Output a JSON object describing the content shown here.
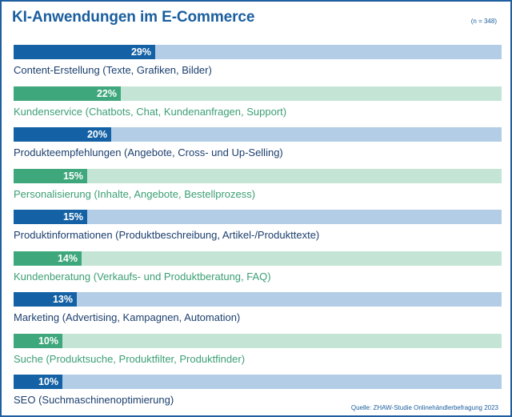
{
  "chart_data": {
    "type": "bar",
    "orientation": "horizontal",
    "title": "KI-Anwendungen im E-Commerce",
    "sample_size": "(n = 348)",
    "source": "Quelle: ZHAW-Studie Onlinehändlerbefragung 2023",
    "xlim": [
      0,
      100
    ],
    "unit": "%",
    "categories": [
      "Content-Erstellung (Texte, Grafiken, Bilder)",
      "Kundenservice (Chatbots, Chat, Kundenanfragen, Support)",
      "Produkteempfehlungen (Angebote, Cross- und Up-Selling)",
      "Personalisierung (Inhalte, Angebote, Bestellprozess)",
      "Produktinformationen (Produktbeschreibung, Artikel-/Produkttexte)",
      "Kundenberatung (Verkaufs- und Produktberatung, FAQ)",
      "Marketing (Advertising, Kampagnen, Automation)",
      "Suche (Produktsuche, Produktfilter, Produktfinder)",
      "SEO (Suchmaschinenoptimierung)"
    ],
    "values": [
      29,
      22,
      20,
      15,
      15,
      14,
      13,
      10,
      10
    ],
    "value_labels": [
      "29%",
      "22%",
      "20%",
      "15%",
      "15%",
      "14%",
      "13%",
      "10%",
      "10%"
    ]
  },
  "colors": {
    "title": "#1a5e9e",
    "blue_fill": "#1462a5",
    "blue_track": "#b3cde6",
    "blue_label": "#1c3f6e",
    "green_fill": "#3fa77c",
    "green_track": "#c4e5d6",
    "green_label": "#3b9f73"
  }
}
